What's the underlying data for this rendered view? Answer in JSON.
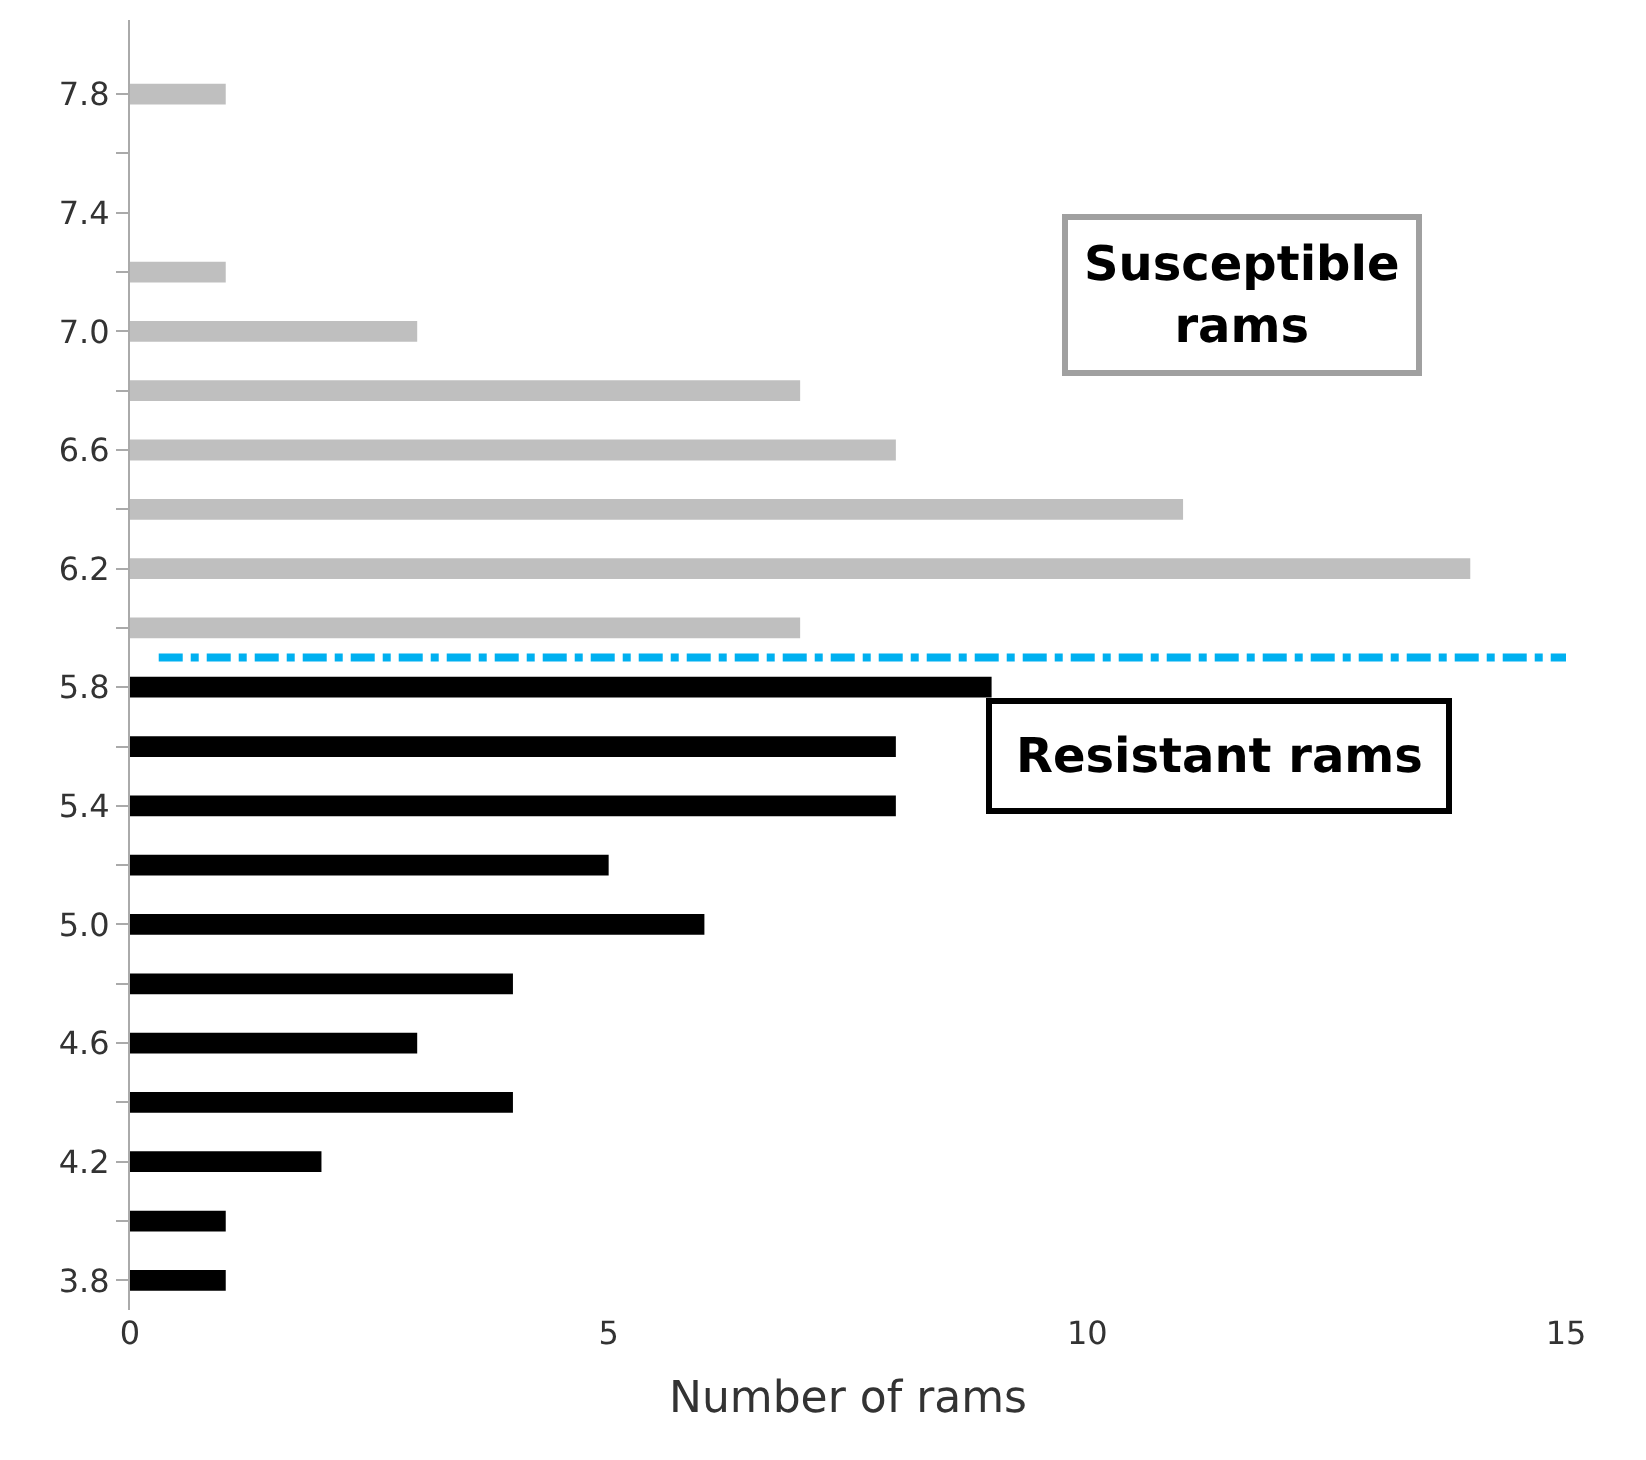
{
  "chart_data": {
    "type": "bar",
    "orientation": "horizontal",
    "xlabel": "Number of rams",
    "series": [
      {
        "color": "#bfbfbf",
        "x": [
          6.0,
          6.2,
          6.4,
          6.6,
          6.8,
          7.0,
          7.2,
          7.8
        ],
        "values": [
          7,
          14,
          11,
          8,
          7,
          3,
          1,
          1
        ]
      },
      {
        "color": "#000000",
        "x": [
          3.8,
          4.0,
          4.2,
          4.4,
          4.6,
          4.8,
          5.0,
          5.2,
          5.4,
          5.6,
          5.8
        ],
        "values": [
          1,
          1,
          2,
          4,
          3,
          4,
          6,
          5,
          8,
          8,
          9
        ]
      }
    ],
    "xlim": [
      0,
      15
    ],
    "xticks": [
      0,
      5,
      10,
      15
    ],
    "ylim": [
      3.7,
      8.05
    ],
    "yticks": [
      {
        "value": 3.8,
        "label": "3.8"
      },
      {
        "value": 4.0,
        "label": null
      },
      {
        "value": 4.2,
        "label": "4.2"
      },
      {
        "value": 4.4,
        "label": null
      },
      {
        "value": 4.6,
        "label": "4.6"
      },
      {
        "value": 4.8,
        "label": null
      },
      {
        "value": 5.0,
        "label": "5.0"
      },
      {
        "value": 5.2,
        "label": null
      },
      {
        "value": 5.4,
        "label": "5.4"
      },
      {
        "value": 5.6,
        "label": null
      },
      {
        "value": 5.8,
        "label": "5.8"
      },
      {
        "value": 6.0,
        "label": null
      },
      {
        "value": 6.2,
        "label": "6.2"
      },
      {
        "value": 6.4,
        "label": null
      },
      {
        "value": 6.6,
        "label": "6.6"
      },
      {
        "value": 6.8,
        "label": null
      },
      {
        "value": 7.0,
        "label": "7.0"
      },
      {
        "value": 7.2,
        "label": null
      },
      {
        "value": 7.4,
        "label": "7.4"
      },
      {
        "value": 7.6,
        "label": null
      },
      {
        "value": 7.8,
        "label": "7.8"
      }
    ],
    "ref_lines": [
      {
        "axis": "y",
        "value": 5.9,
        "color": "#00b0f0",
        "line_style": "dashdot"
      }
    ],
    "annotations": [
      "Susceptible rams",
      "Resistant rams"
    ],
    "legend": false
  }
}
